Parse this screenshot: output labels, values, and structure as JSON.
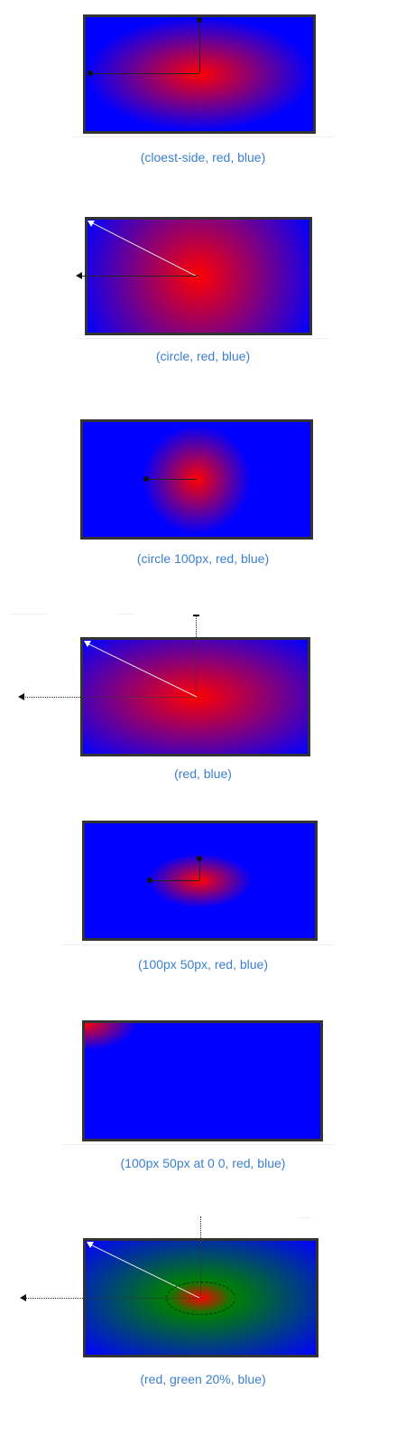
{
  "examples": [
    {
      "caption": "(cloest-side, red, blue)"
    },
    {
      "caption": "(circle, red, blue)"
    },
    {
      "caption": "(circle 100px, red, blue)"
    },
    {
      "caption": "(red, blue)"
    },
    {
      "caption": "(100px 50px, red, blue)"
    },
    {
      "caption": "(100px 50px at 0 0, red, blue)"
    },
    {
      "caption": "(red, green 20%, blue)"
    }
  ],
  "colors": {
    "red": "#ff0000",
    "green": "#008000",
    "blue": "#0000ff",
    "caption": "#3a7fd0",
    "border": "#333333"
  }
}
